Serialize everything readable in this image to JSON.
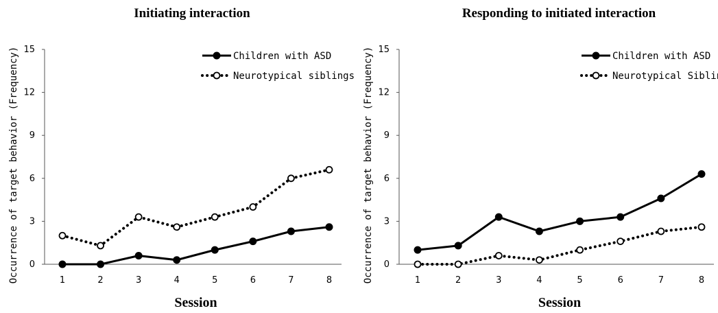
{
  "chart_data": [
    {
      "type": "line",
      "title": "Initiating interaction",
      "xlabel": "Session",
      "ylabel": "Occurrence of target behavior (Frequency)",
      "categories": [
        1,
        2,
        3,
        4,
        5,
        6,
        7,
        8
      ],
      "x_ticks": [
        "1",
        "2",
        "3",
        "4",
        "5",
        "6",
        "7",
        "8"
      ],
      "y_ticks": [
        "0",
        "3",
        "6",
        "9",
        "12",
        "15"
      ],
      "ylim": [
        0,
        15
      ],
      "legend_position": "top-right",
      "series": [
        {
          "name": "Children with ASD",
          "style": "solid",
          "marker": "filled-circle",
          "color": "#000000",
          "values": [
            0,
            0,
            0.6,
            0.3,
            1.0,
            1.6,
            2.3,
            2.6
          ]
        },
        {
          "name": "Neurotypical siblings",
          "style": "dotted",
          "marker": "open-circle",
          "color": "#000000",
          "values": [
            2.0,
            1.3,
            3.3,
            2.6,
            3.3,
            4.0,
            6.0,
            6.6
          ]
        }
      ]
    },
    {
      "type": "line",
      "title": "Responding to initiated interaction",
      "xlabel": "Session",
      "ylabel": "Occurrence of target behavior (Frequency)",
      "categories": [
        1,
        2,
        3,
        4,
        5,
        6,
        7,
        8
      ],
      "x_ticks": [
        "1",
        "2",
        "3",
        "4",
        "5",
        "6",
        "7",
        "8"
      ],
      "y_ticks": [
        "0",
        "3",
        "6",
        "9",
        "12",
        "15"
      ],
      "ylim": [
        0,
        15
      ],
      "legend_position": "top-right",
      "series": [
        {
          "name": "Children with ASD",
          "style": "solid",
          "marker": "filled-circle",
          "color": "#000000",
          "values": [
            1.0,
            1.3,
            3.3,
            2.3,
            3.0,
            3.3,
            4.6,
            6.3
          ]
        },
        {
          "name": "Neurotypical Siblings",
          "style": "dotted",
          "marker": "open-circle",
          "color": "#000000",
          "values": [
            0,
            0,
            0.6,
            0.3,
            1.0,
            1.6,
            2.3,
            2.6
          ]
        }
      ]
    }
  ]
}
